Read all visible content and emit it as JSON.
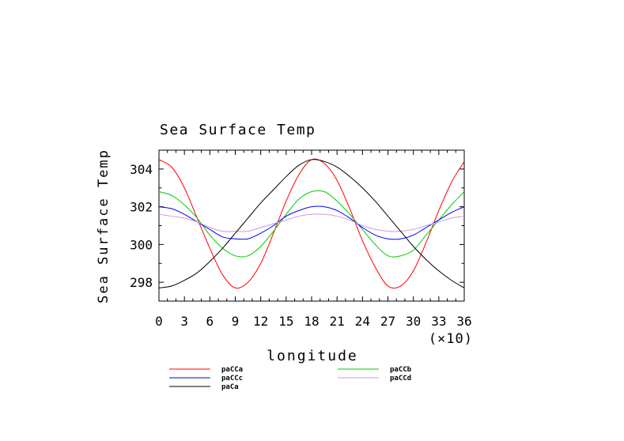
{
  "chart_data": {
    "type": "line",
    "title": "Sea Surface Temp",
    "xlabel": "longitude",
    "ylabel": "Sea Surface Temp",
    "x_multiplier_label": "(×10)",
    "xlim": [
      0,
      36
    ],
    "ylim": [
      297,
      305
    ],
    "x_ticks": [
      0,
      3,
      6,
      9,
      12,
      15,
      18,
      21,
      24,
      27,
      30,
      33,
      36
    ],
    "y_ticks": [
      298,
      300,
      302,
      304
    ],
    "grid": false,
    "legend_placement": "bottom",
    "x": [
      0,
      1.5,
      3,
      4.5,
      6,
      7.5,
      9,
      10.5,
      12,
      13.5,
      15,
      16.5,
      18,
      19.5,
      21,
      22.5,
      24,
      25.5,
      27,
      28.5,
      30,
      31.5,
      33,
      34.5,
      36
    ],
    "series": [
      {
        "name": "paCCa",
        "color": "#ff0000",
        "values": [
          304.5,
          304.1,
          303.0,
          301.4,
          299.8,
          298.4,
          297.7,
          298.0,
          299.0,
          300.6,
          302.3,
          303.7,
          304.5,
          304.3,
          303.4,
          301.9,
          300.2,
          298.8,
          297.8,
          297.8,
          298.6,
          300.1,
          301.8,
          303.3,
          304.4
        ]
      },
      {
        "name": "paCCb",
        "color": "#00cc00",
        "values": [
          302.8,
          302.6,
          302.1,
          301.4,
          300.5,
          299.8,
          299.4,
          299.4,
          299.9,
          300.7,
          301.6,
          302.4,
          302.8,
          302.8,
          302.3,
          301.6,
          300.8,
          300.0,
          299.4,
          299.4,
          299.7,
          300.5,
          301.3,
          302.1,
          302.8
        ]
      },
      {
        "name": "paCCc",
        "color": "#0000ff",
        "values": [
          302.0,
          301.9,
          301.6,
          301.2,
          300.8,
          300.4,
          300.3,
          300.3,
          300.6,
          301.0,
          301.5,
          301.8,
          302.0,
          302.0,
          301.8,
          301.4,
          300.9,
          300.5,
          300.3,
          300.3,
          300.5,
          300.9,
          301.3,
          301.7,
          302.0
        ]
      },
      {
        "name": "paCCd",
        "color": "#cc99dd",
        "values": [
          301.6,
          301.5,
          301.4,
          301.2,
          300.9,
          300.7,
          300.7,
          300.7,
          300.9,
          301.1,
          301.3,
          301.5,
          301.6,
          301.6,
          301.5,
          301.3,
          301.0,
          300.8,
          300.7,
          300.7,
          300.8,
          301.0,
          301.2,
          301.4,
          301.5
        ]
      },
      {
        "name": "paCa",
        "color": "#000000",
        "values": [
          297.7,
          297.8,
          298.1,
          298.5,
          299.1,
          299.8,
          300.6,
          301.4,
          302.2,
          302.9,
          303.6,
          304.2,
          304.5,
          304.4,
          304.1,
          303.6,
          303.0,
          302.3,
          301.5,
          300.7,
          299.9,
          299.2,
          298.6,
          298.1,
          297.7
        ]
      }
    ],
    "legend": {
      "left_column": [
        "paCCa",
        "paCCc",
        "paCa"
      ],
      "right_column": [
        "paCCb",
        "paCCd"
      ]
    }
  }
}
